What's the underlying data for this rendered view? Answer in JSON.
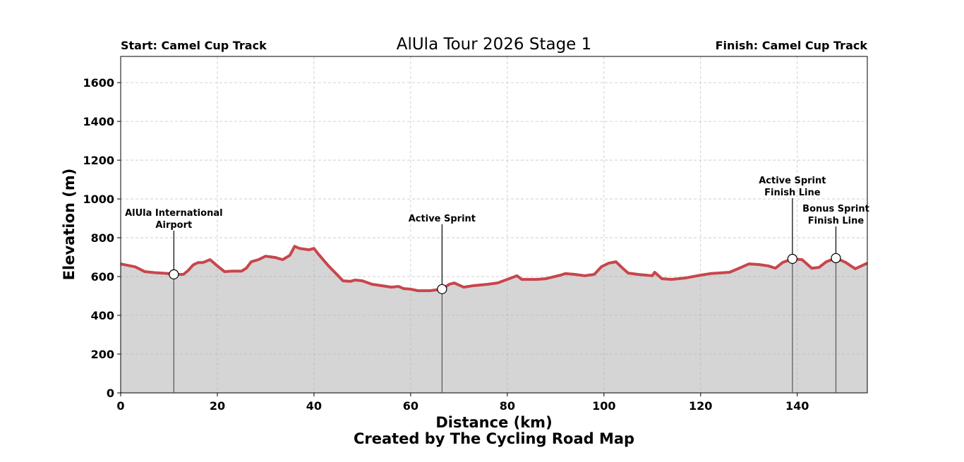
{
  "chart_data": {
    "type": "area",
    "title": "AlUla Tour 2026 Stage 1",
    "start_label": "Start: Camel Cup Track",
    "finish_label": "Finish: Camel Cup Track",
    "x_label": "Distance (km)",
    "y_label": "Elevation (m)",
    "footer": "Created by The Cycling Road Map",
    "line_color": "#c8464c",
    "fill_color": "#d5d5d5",
    "grid": true,
    "xlim": [
      0,
      154.5
    ],
    "ylim": [
      0,
      1735
    ],
    "xticks": [
      0,
      20,
      40,
      60,
      80,
      100,
      120,
      140
    ],
    "yticks": [
      0,
      200,
      400,
      600,
      800,
      1000,
      1200,
      1400,
      1600
    ],
    "x": [
      0,
      3,
      5,
      7,
      10,
      11,
      13,
      14,
      15,
      16,
      17,
      18.5,
      20,
      21.5,
      23,
      25,
      26,
      27,
      28.5,
      30,
      32,
      33.5,
      35,
      36,
      37,
      39,
      40,
      41,
      43,
      45,
      46,
      47.5,
      48.5,
      50,
      52,
      54,
      56,
      57.5,
      58.5,
      60,
      61.5,
      64,
      66.5,
      68,
      69,
      71,
      73,
      76,
      78,
      80,
      82,
      83,
      86,
      88,
      91,
      92,
      94,
      96,
      98,
      99.5,
      101,
      102.5,
      104,
      105,
      107,
      110,
      110.5,
      112,
      114,
      117,
      120,
      122,
      126,
      128,
      130,
      132,
      134,
      135.5,
      137,
      139,
      141,
      143,
      144.5,
      146,
      148,
      150,
      152,
      154.5
    ],
    "values": [
      665,
      650,
      625,
      620,
      615,
      611,
      611,
      632,
      660,
      672,
      672,
      687,
      655,
      625,
      628,
      628,
      643,
      676,
      687,
      705,
      698,
      687,
      709,
      756,
      745,
      738,
      745,
      713,
      655,
      604,
      578,
      575,
      582,
      578,
      560,
      553,
      545,
      549,
      538,
      535,
      527,
      527,
      535,
      560,
      567,
      545,
      553,
      560,
      567,
      585,
      604,
      585,
      585,
      589,
      607,
      615,
      611,
      604,
      611,
      651,
      669,
      676,
      640,
      618,
      611,
      604,
      622,
      589,
      585,
      593,
      607,
      615,
      622,
      643,
      665,
      662,
      655,
      643,
      673,
      691,
      687,
      643,
      647,
      676,
      695,
      673,
      640,
      669
    ],
    "markers": [
      {
        "x": 11,
        "y": 611,
        "label": [
          "AlUla International",
          "Airport"
        ]
      },
      {
        "x": 66.5,
        "y": 535,
        "label": [
          "Active Sprint"
        ]
      },
      {
        "x": 139,
        "y": 691,
        "label": [
          "Active Sprint",
          "Finish Line"
        ]
      },
      {
        "x": 148,
        "y": 695,
        "label": [
          "Bonus Sprint",
          "Finish Line"
        ]
      }
    ]
  }
}
